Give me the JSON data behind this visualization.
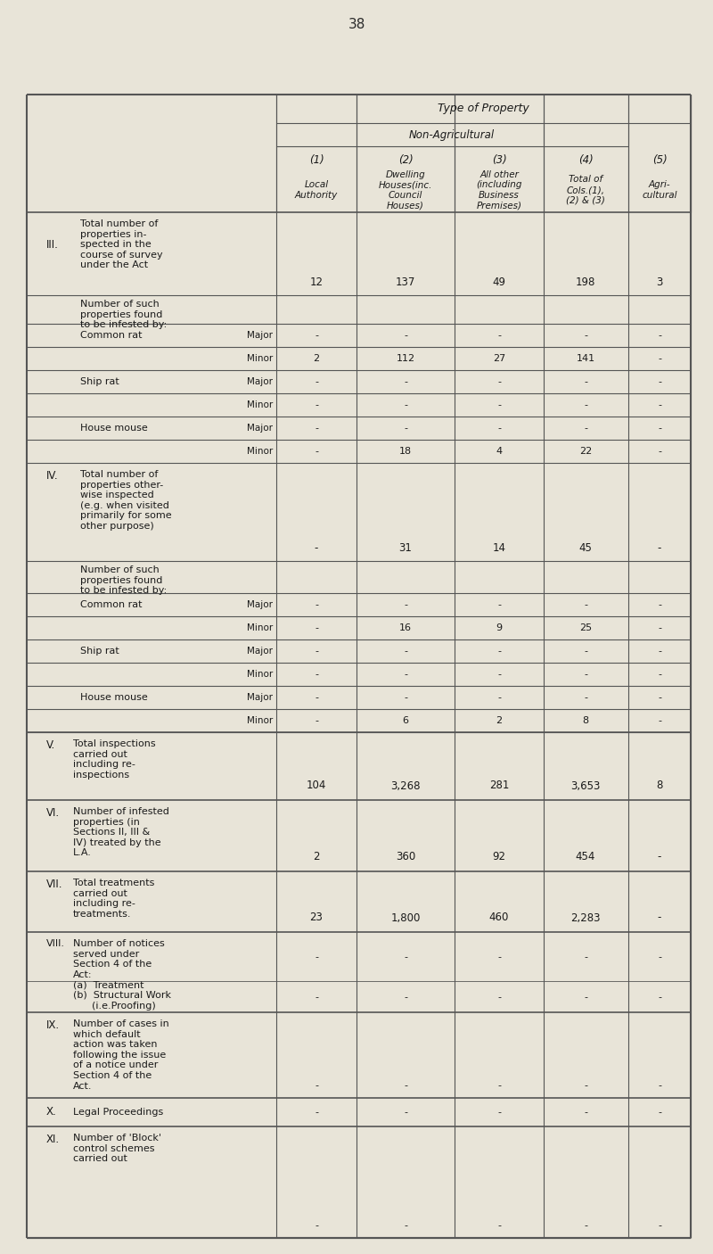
{
  "page_number": "38",
  "bg_color": "#e8e4d8",
  "table_bg": "#ddd9cc",
  "font_family": "DejaVu Sans",
  "page_number_size": 11,
  "header1": "Type of Property",
  "header2": "Non-Agricultural",
  "col_nums": [
    "(1)",
    "(2)",
    "(3)",
    "(4)",
    "(5)"
  ],
  "col_labels": [
    "Local\nAuthority",
    "Dwelling\nHouses(inc.\nCouncil\nHouses)",
    "All other\n(including\nBusiness\nPremises)",
    "Total of\nCols.(1),\n(2) & (3)",
    "Agri-\ncultural"
  ],
  "dash": "-"
}
